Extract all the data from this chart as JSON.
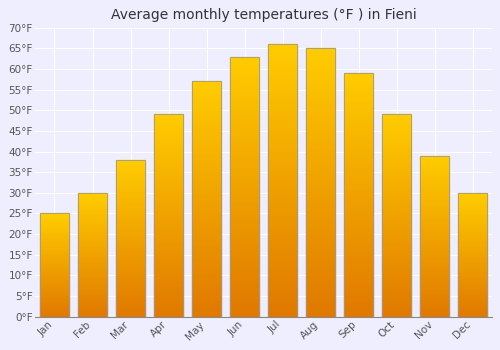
{
  "title": "Average monthly temperatures (°F ) in Fieni",
  "months": [
    "Jan",
    "Feb",
    "Mar",
    "Apr",
    "May",
    "Jun",
    "Jul",
    "Aug",
    "Sep",
    "Oct",
    "Nov",
    "Dec"
  ],
  "values": [
    25,
    30,
    38,
    49,
    57,
    63,
    66,
    65,
    59,
    49,
    39,
    30
  ],
  "bar_color_top": "#FFB300",
  "bar_color_bottom": "#E07800",
  "bar_edge_color": "#999999",
  "ylim": [
    0,
    70
  ],
  "yticks": [
    0,
    5,
    10,
    15,
    20,
    25,
    30,
    35,
    40,
    45,
    50,
    55,
    60,
    65,
    70
  ],
  "ytick_labels": [
    "0°F",
    "5°F",
    "10°F",
    "15°F",
    "20°F",
    "25°F",
    "30°F",
    "35°F",
    "40°F",
    "45°F",
    "50°F",
    "55°F",
    "60°F",
    "65°F",
    "70°F"
  ],
  "title_fontsize": 10,
  "tick_fontsize": 7.5,
  "background_color": "#eeeeff",
  "plot_bg_color": "#eeeeff",
  "grid_color": "#ffffff",
  "bar_width": 0.75
}
